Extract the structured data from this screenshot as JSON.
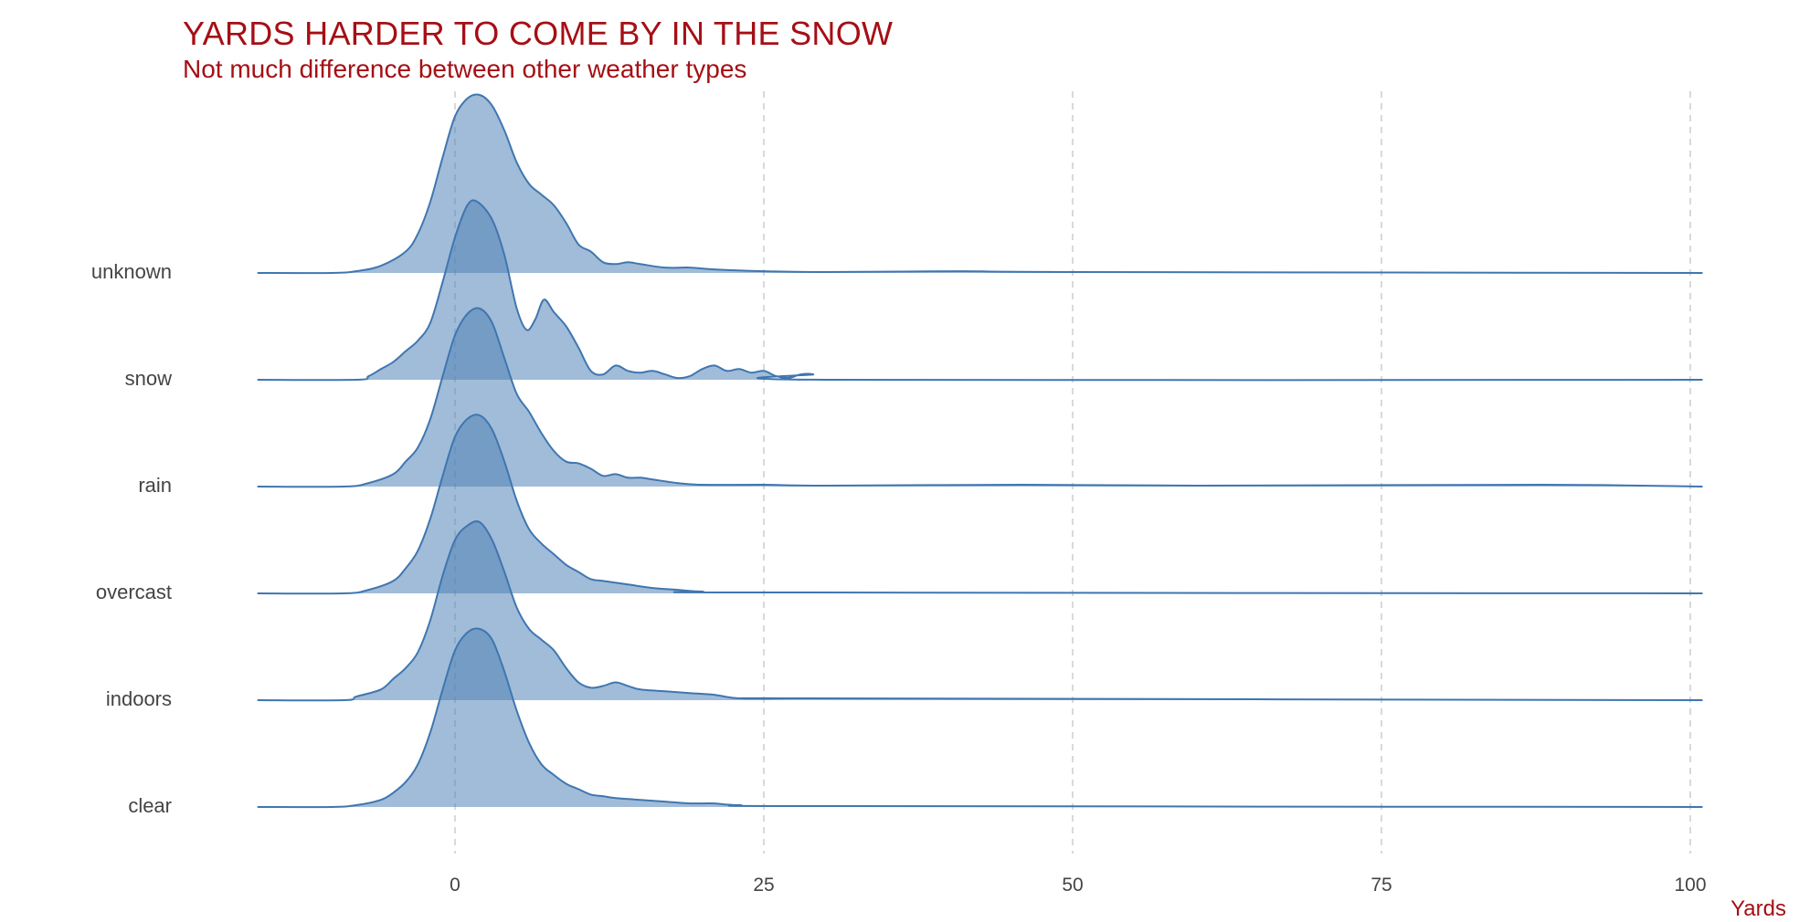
{
  "chart_data": {
    "type": "ridgeline",
    "title": "YARDS HARDER TO COME BY IN THE SNOW",
    "subtitle": "Not much difference between other weather types",
    "xlabel": "Yards",
    "ylabel": "",
    "xlim": [
      -16,
      101
    ],
    "x_ticks": [
      "0",
      "25",
      "50",
      "75",
      "100"
    ],
    "x_tick_values": [
      0,
      25,
      50,
      75,
      100
    ],
    "grid": "vertical dashed",
    "fill_color": "#4a7fb5",
    "line_color": "#3f76b0",
    "categories": [
      "unknown",
      "snow",
      "rain",
      "overcast",
      "indoors",
      "clear"
    ],
    "series": [
      {
        "name": "unknown",
        "points": [
          [
            -16,
            0
          ],
          [
            -10,
            0
          ],
          [
            -8,
            0.01
          ],
          [
            -6,
            0.04
          ],
          [
            -4,
            0.12
          ],
          [
            -3,
            0.22
          ],
          [
            -2,
            0.4
          ],
          [
            -1,
            0.65
          ],
          [
            0,
            0.88
          ],
          [
            1,
            0.98
          ],
          [
            2,
            1.0
          ],
          [
            3,
            0.94
          ],
          [
            4,
            0.8
          ],
          [
            5,
            0.62
          ],
          [
            6,
            0.5
          ],
          [
            7,
            0.44
          ],
          [
            8,
            0.38
          ],
          [
            9,
            0.28
          ],
          [
            10,
            0.16
          ],
          [
            11,
            0.12
          ],
          [
            12,
            0.06
          ],
          [
            13,
            0.05
          ],
          [
            14,
            0.06
          ],
          [
            15,
            0.05
          ],
          [
            17,
            0.03
          ],
          [
            19,
            0.03
          ],
          [
            21,
            0.02
          ],
          [
            25,
            0.01
          ],
          [
            30,
            0.005
          ],
          [
            41,
            0.01
          ],
          [
            50,
            0.005
          ],
          [
            101,
            0
          ]
        ]
      },
      {
        "name": "snow",
        "points": [
          [
            -16,
            0
          ],
          [
            -8,
            0
          ],
          [
            -7,
            0.02
          ],
          [
            -6,
            0.06
          ],
          [
            -5,
            0.1
          ],
          [
            -4,
            0.16
          ],
          [
            -3,
            0.22
          ],
          [
            -2,
            0.32
          ],
          [
            -1,
            0.55
          ],
          [
            0,
            0.8
          ],
          [
            1,
            0.98
          ],
          [
            1.8,
            1.0
          ],
          [
            3,
            0.9
          ],
          [
            4,
            0.7
          ],
          [
            5,
            0.4
          ],
          [
            5.8,
            0.28
          ],
          [
            6.5,
            0.34
          ],
          [
            7.2,
            0.45
          ],
          [
            8,
            0.38
          ],
          [
            9,
            0.3
          ],
          [
            10,
            0.18
          ],
          [
            11,
            0.05
          ],
          [
            12,
            0.03
          ],
          [
            13,
            0.08
          ],
          [
            14,
            0.05
          ],
          [
            15,
            0.04
          ],
          [
            16,
            0.05
          ],
          [
            17,
            0.03
          ],
          [
            18,
            0.01
          ],
          [
            19,
            0.02
          ],
          [
            20,
            0.06
          ],
          [
            21,
            0.08
          ],
          [
            22,
            0.05
          ],
          [
            23,
            0.06
          ],
          [
            24,
            0.04
          ],
          [
            25,
            0.05
          ],
          [
            26,
            0.02
          ],
          [
            27,
            0.01
          ],
          [
            28,
            0.03
          ],
          [
            29,
            0.03
          ],
          [
            30,
            0
          ],
          [
            101,
            0
          ]
        ]
      },
      {
        "name": "rain",
        "points": [
          [
            -16,
            0
          ],
          [
            -9,
            0
          ],
          [
            -7,
            0.02
          ],
          [
            -5,
            0.07
          ],
          [
            -4,
            0.14
          ],
          [
            -3,
            0.22
          ],
          [
            -2,
            0.38
          ],
          [
            -1,
            0.62
          ],
          [
            0,
            0.85
          ],
          [
            1,
            0.97
          ],
          [
            2,
            1.0
          ],
          [
            3,
            0.92
          ],
          [
            4,
            0.72
          ],
          [
            5,
            0.52
          ],
          [
            6,
            0.42
          ],
          [
            7,
            0.3
          ],
          [
            8,
            0.2
          ],
          [
            9,
            0.14
          ],
          [
            10,
            0.13
          ],
          [
            11,
            0.1
          ],
          [
            12,
            0.06
          ],
          [
            13,
            0.07
          ],
          [
            14,
            0.05
          ],
          [
            15,
            0.05
          ],
          [
            16,
            0.04
          ],
          [
            18,
            0.02
          ],
          [
            20,
            0.01
          ],
          [
            25,
            0.01
          ],
          [
            30,
            0.005
          ],
          [
            46,
            0.01
          ],
          [
            60,
            0.005
          ],
          [
            88,
            0.01
          ],
          [
            101,
            0
          ]
        ]
      },
      {
        "name": "overcast",
        "points": [
          [
            -16,
            0
          ],
          [
            -9,
            0
          ],
          [
            -7,
            0.02
          ],
          [
            -5,
            0.07
          ],
          [
            -4,
            0.14
          ],
          [
            -3,
            0.24
          ],
          [
            -2,
            0.42
          ],
          [
            -1,
            0.66
          ],
          [
            0,
            0.88
          ],
          [
            1,
            0.98
          ],
          [
            2,
            1.0
          ],
          [
            3,
            0.92
          ],
          [
            4,
            0.74
          ],
          [
            5,
            0.52
          ],
          [
            6,
            0.36
          ],
          [
            7,
            0.28
          ],
          [
            8,
            0.22
          ],
          [
            9,
            0.16
          ],
          [
            10,
            0.12
          ],
          [
            11,
            0.08
          ],
          [
            12,
            0.07
          ],
          [
            14,
            0.05
          ],
          [
            16,
            0.03
          ],
          [
            18,
            0.02
          ],
          [
            20,
            0.01
          ],
          [
            25,
            0.005
          ],
          [
            101,
            0
          ]
        ]
      },
      {
        "name": "indoors",
        "points": [
          [
            -16,
            0
          ],
          [
            -9,
            0
          ],
          [
            -8,
            0.02
          ],
          [
            -6,
            0.06
          ],
          [
            -5,
            0.12
          ],
          [
            -4,
            0.18
          ],
          [
            -3,
            0.27
          ],
          [
            -2,
            0.45
          ],
          [
            -1,
            0.7
          ],
          [
            0,
            0.9
          ],
          [
            1,
            0.98
          ],
          [
            2,
            1.0
          ],
          [
            3,
            0.9
          ],
          [
            4,
            0.72
          ],
          [
            5,
            0.52
          ],
          [
            6,
            0.4
          ],
          [
            7,
            0.34
          ],
          [
            8,
            0.28
          ],
          [
            9,
            0.18
          ],
          [
            10,
            0.1
          ],
          [
            11,
            0.07
          ],
          [
            12,
            0.08
          ],
          [
            13,
            0.1
          ],
          [
            14,
            0.08
          ],
          [
            15,
            0.06
          ],
          [
            17,
            0.05
          ],
          [
            19,
            0.04
          ],
          [
            21,
            0.03
          ],
          [
            23,
            0.01
          ],
          [
            27,
            0.01
          ],
          [
            29,
            0.01
          ],
          [
            101,
            0
          ]
        ]
      },
      {
        "name": "clear",
        "points": [
          [
            -16,
            0
          ],
          [
            -10,
            0
          ],
          [
            -8,
            0.01
          ],
          [
            -6,
            0.04
          ],
          [
            -5,
            0.08
          ],
          [
            -4,
            0.14
          ],
          [
            -3,
            0.24
          ],
          [
            -2,
            0.42
          ],
          [
            -1,
            0.66
          ],
          [
            0,
            0.88
          ],
          [
            1,
            0.98
          ],
          [
            2,
            1.0
          ],
          [
            3,
            0.94
          ],
          [
            4,
            0.76
          ],
          [
            5,
            0.54
          ],
          [
            6,
            0.36
          ],
          [
            7,
            0.24
          ],
          [
            8,
            0.18
          ],
          [
            9,
            0.13
          ],
          [
            10,
            0.1
          ],
          [
            11,
            0.07
          ],
          [
            12,
            0.06
          ],
          [
            13,
            0.05
          ],
          [
            15,
            0.04
          ],
          [
            17,
            0.03
          ],
          [
            19,
            0.02
          ],
          [
            21,
            0.02
          ],
          [
            23,
            0.01
          ],
          [
            30,
            0.005
          ],
          [
            101,
            0
          ]
        ]
      }
    ]
  }
}
